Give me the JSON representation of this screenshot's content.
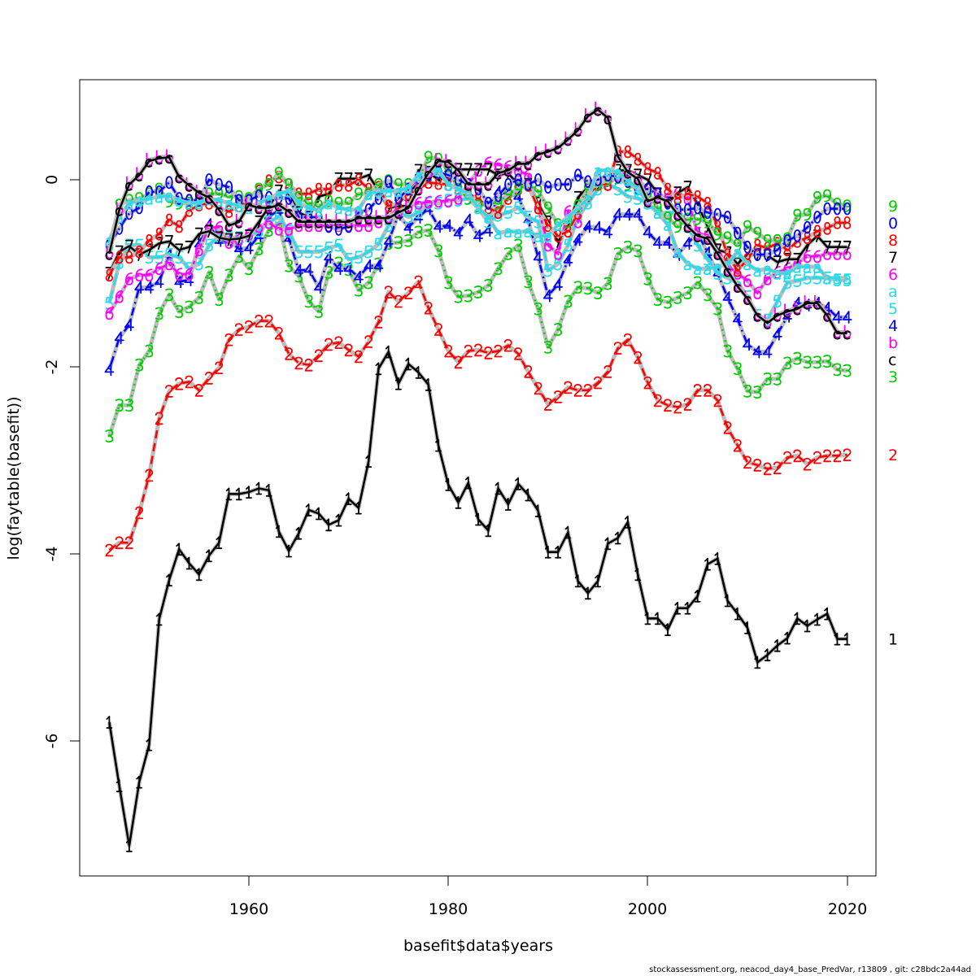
{
  "chart_data": {
    "type": "line",
    "title": "",
    "xlabel": "basefit$data$years",
    "ylabel": "log(faytable(basefit))",
    "xlim": [
      1946,
      2020
    ],
    "ylim": [
      -7.2,
      0.9
    ],
    "x_ticks": [
      "1960",
      "1980",
      "2000",
      "2020"
    ],
    "y_ticks": [
      "-6",
      "-4",
      "-2",
      "0"
    ],
    "grid": false,
    "legend": "none",
    "x_start": 1946,
    "series": [
      {
        "name": "1",
        "color": "#000000",
        "values": [
          -5.8,
          -6.48,
          -7.12,
          -6.44,
          -6.04,
          -4.7,
          -4.28,
          -3.95,
          -4.1,
          -4.22,
          -4.02,
          -3.88,
          -3.36,
          -3.36,
          -3.34,
          -3.3,
          -3.32,
          -3.76,
          -3.97,
          -3.78,
          -3.53,
          -3.57,
          -3.69,
          -3.64,
          -3.41,
          -3.51,
          -3.01,
          -2.02,
          -1.84,
          -2.18,
          -1.97,
          -2.06,
          -2.19,
          -2.84,
          -3.26,
          -3.45,
          -3.24,
          -3.63,
          -3.75,
          -3.3,
          -3.47,
          -3.25,
          -3.37,
          -3.54,
          -3.98,
          -3.98,
          -3.77,
          -4.29,
          -4.42,
          -4.29,
          -3.89,
          -3.83,
          -3.66,
          -4.22,
          -4.69,
          -4.69,
          -4.81,
          -4.58,
          -4.58,
          -4.45,
          -4.11,
          -4.05,
          -4.5,
          -4.64,
          -4.79,
          -5.16,
          -5.08,
          -4.98,
          -4.9,
          -4.69,
          -4.77,
          -4.7,
          -4.64,
          -4.91,
          -4.91
        ]
      },
      {
        "name": "2",
        "color": "#FF0000",
        "values": [
          -3.96,
          -3.88,
          -3.88,
          -3.56,
          -3.16,
          -2.55,
          -2.26,
          -2.18,
          -2.16,
          -2.25,
          -2.12,
          -2.01,
          -1.71,
          -1.6,
          -1.57,
          -1.51,
          -1.51,
          -1.64,
          -1.86,
          -1.96,
          -1.98,
          -1.88,
          -1.76,
          -1.74,
          -1.82,
          -1.89,
          -1.73,
          -1.52,
          -1.2,
          -1.3,
          -1.21,
          -1.09,
          -1.37,
          -1.6,
          -1.83,
          -1.95,
          -1.83,
          -1.82,
          -1.85,
          -1.83,
          -1.77,
          -1.86,
          -2.05,
          -2.23,
          -2.4,
          -2.32,
          -2.22,
          -2.25,
          -2.25,
          -2.17,
          -2.05,
          -1.8,
          -1.71,
          -1.9,
          -2.17,
          -2.36,
          -2.41,
          -2.43,
          -2.4,
          -2.25,
          -2.25,
          -2.36,
          -2.65,
          -2.84,
          -3.02,
          -3.05,
          -3.09,
          -3.08,
          -2.97,
          -2.95,
          -3.04,
          -2.97,
          -2.95,
          -2.95,
          -2.94
        ]
      },
      {
        "name": "3",
        "color": "#00CD00",
        "values": [
          -2.74,
          -2.41,
          -2.41,
          -1.98,
          -1.83,
          -1.43,
          -1.23,
          -1.41,
          -1.36,
          -1.26,
          -0.99,
          -1.28,
          -1.02,
          -0.82,
          -0.95,
          -0.74,
          -0.54,
          -0.46,
          -0.92,
          -1.03,
          -1.3,
          -1.41,
          -0.99,
          -0.89,
          -0.96,
          -1.18,
          -1.1,
          -0.9,
          -0.68,
          -0.67,
          -0.65,
          -0.56,
          -0.54,
          -0.76,
          -1.1,
          -1.25,
          -1.24,
          -1.2,
          -1.13,
          -0.95,
          -0.79,
          -0.7,
          -1.09,
          -1.38,
          -1.79,
          -1.6,
          -1.3,
          -1.15,
          -1.16,
          -1.21,
          -1.11,
          -0.79,
          -0.72,
          -0.76,
          -1.06,
          -1.28,
          -1.31,
          -1.26,
          -1.21,
          -1.1,
          -1.23,
          -1.38,
          -1.83,
          -2.02,
          -2.26,
          -2.27,
          -2.13,
          -2.13,
          -1.96,
          -1.91,
          -1.95,
          -1.95,
          -1.94,
          -2.03,
          -2.04
        ]
      },
      {
        "name": "4",
        "color": "#0000FF",
        "values": [
          -2.03,
          -1.69,
          -1.55,
          -1.15,
          -1.15,
          -1.09,
          -0.8,
          -1.09,
          -1.07,
          -0.69,
          -0.48,
          -0.65,
          -0.65,
          -0.74,
          -0.73,
          -0.6,
          -0.39,
          -0.33,
          -0.63,
          -0.97,
          -0.96,
          -1.15,
          -0.83,
          -0.95,
          -0.95,
          -1.04,
          -0.92,
          -0.92,
          -0.66,
          -0.37,
          -0.51,
          -0.4,
          -0.31,
          -0.5,
          -0.49,
          -0.57,
          -0.43,
          -0.6,
          -0.54,
          -0.13,
          -0.15,
          -0.18,
          -0.43,
          -0.83,
          -1.24,
          -1.12,
          -0.86,
          -0.64,
          -0.5,
          -0.51,
          -0.56,
          -0.37,
          -0.37,
          -0.37,
          -0.56,
          -0.67,
          -0.67,
          -0.8,
          -0.68,
          -0.57,
          -0.78,
          -1.0,
          -1.26,
          -1.49,
          -1.76,
          -1.84,
          -1.84,
          -1.65,
          -1.46,
          -1.32,
          -1.34,
          -1.32,
          -1.37,
          -1.47,
          -1.47
        ]
      },
      {
        "name": "5",
        "color": "#22DDEE",
        "values": [
          -1.32,
          -0.89,
          -0.7,
          -0.7,
          -0.83,
          -0.83,
          -0.8,
          -0.83,
          -0.95,
          -0.9,
          -0.7,
          -0.6,
          -0.62,
          -0.62,
          -0.6,
          -0.55,
          -0.45,
          -0.4,
          -0.55,
          -0.77,
          -0.77,
          -0.77,
          -0.73,
          -0.7,
          -0.85,
          -0.83,
          -0.77,
          -0.69,
          -0.49,
          -0.34,
          -0.4,
          -0.35,
          -0.25,
          -0.25,
          -0.22,
          -0.22,
          -0.2,
          -0.3,
          -0.45,
          -0.38,
          -0.35,
          -0.3,
          -0.4,
          -0.45,
          -0.97,
          -0.9,
          -0.7,
          -0.4,
          -0.25,
          -0.1,
          -0.05,
          -0.1,
          -0.18,
          -0.2,
          -0.25,
          -0.35,
          -0.4,
          -0.3,
          -0.5,
          -0.7,
          -0.85,
          -1.0,
          -1.05,
          -1.1,
          -1.25,
          -1.45,
          -1.5,
          -1.3,
          -1.1,
          -1.08,
          -1.05,
          -1.05,
          -1.05,
          -1.07,
          -1.07
        ]
      },
      {
        "name": "6",
        "color": "#FF00FF",
        "values": [
          -1.43,
          -1.25,
          -1.06,
          -1.02,
          -1.02,
          -0.95,
          -0.9,
          -1.01,
          -1.01,
          -0.75,
          -0.51,
          -0.51,
          -0.67,
          -0.64,
          -0.58,
          -0.5,
          -0.46,
          -0.53,
          -0.53,
          -0.49,
          -0.49,
          -0.49,
          -0.49,
          -0.49,
          -0.49,
          -0.49,
          -0.49,
          -0.45,
          -0.4,
          -0.3,
          -0.28,
          -0.25,
          -0.24,
          -0.23,
          -0.23,
          -0.2,
          -0.05,
          0.1,
          0.18,
          0.16,
          0.14,
          0.1,
          0.05,
          -0.3,
          -0.7,
          -0.79,
          -0.34,
          -0.45,
          -0.1,
          -0.05,
          -0.05,
          0.05,
          0.08,
          0.0,
          -0.1,
          -0.15,
          -0.2,
          -0.14,
          -0.2,
          -0.57,
          -0.6,
          -0.75,
          -0.92,
          -1.0,
          -1.08,
          -1.21,
          -1.06,
          -0.99,
          -0.95,
          -0.89,
          -0.82,
          -0.82,
          -0.79,
          -0.79,
          -0.79
        ]
      },
      {
        "name": "7",
        "color": "#000000",
        "values": [
          -1.0,
          -0.77,
          -0.71,
          -0.8,
          -0.75,
          -0.68,
          -0.66,
          -0.75,
          -0.72,
          -0.58,
          -0.55,
          -0.62,
          -0.64,
          -0.63,
          -0.6,
          -0.45,
          -0.29,
          -0.12,
          -0.15,
          -0.35,
          -0.4,
          -0.18,
          -0.15,
          0.01,
          0.01,
          0.01,
          0.05,
          -0.12,
          -0.3,
          -0.28,
          -0.28,
          0.1,
          0.08,
          0.0,
          0.03,
          0.11,
          0.11,
          0.11,
          0.11,
          0.05,
          0.07,
          -0.05,
          -0.05,
          -0.25,
          -0.45,
          -0.66,
          -0.5,
          -0.19,
          -0.08,
          -0.05,
          -0.01,
          0.1,
          0.1,
          0.05,
          0.0,
          -0.15,
          -0.25,
          -0.14,
          -0.08,
          -0.26,
          -0.5,
          -0.75,
          -0.78,
          -0.9,
          -0.8,
          -0.8,
          -0.81,
          -0.88,
          -0.85,
          -0.85,
          -0.7,
          -0.6,
          -0.72,
          -0.72,
          -0.72
        ]
      },
      {
        "name": "8",
        "color": "#FF0000",
        "values": [
          -1.02,
          -0.83,
          -0.83,
          -0.77,
          -0.65,
          -0.58,
          -0.43,
          -0.5,
          -0.33,
          -0.27,
          -0.25,
          -0.3,
          -0.34,
          -0.28,
          -0.23,
          -0.12,
          -0.01,
          0.03,
          -0.05,
          -0.15,
          -0.15,
          -0.1,
          -0.1,
          -0.06,
          -0.06,
          0.0,
          -0.1,
          -0.08,
          -0.28,
          -0.25,
          -0.15,
          -0.1,
          -0.03,
          -0.04,
          -0.05,
          -0.1,
          -0.15,
          -0.2,
          -0.3,
          -0.35,
          -0.2,
          -0.1,
          -0.06,
          -0.3,
          -0.49,
          -0.6,
          -0.55,
          -0.36,
          -0.17,
          -0.05,
          -0.05,
          0.3,
          0.3,
          0.22,
          0.12,
          0.07,
          -0.1,
          -0.2,
          -0.15,
          -0.18,
          -0.25,
          -0.5,
          -0.8,
          -0.97,
          -0.85,
          -0.7,
          -0.73,
          -0.68,
          -0.75,
          -0.66,
          -0.62,
          -0.55,
          -0.52,
          -0.46,
          -0.46
        ]
      },
      {
        "name": "9",
        "color": "#00CD00",
        "values": [
          -0.72,
          -0.27,
          -0.22,
          -0.2,
          -0.15,
          -0.1,
          -0.23,
          -0.25,
          -0.25,
          -0.22,
          -0.15,
          -0.15,
          -0.18,
          -0.18,
          -0.2,
          -0.1,
          -0.05,
          0.07,
          -0.05,
          -0.19,
          -0.25,
          -0.28,
          -0.23,
          -0.25,
          -0.25,
          -0.15,
          -0.15,
          -0.05,
          -0.01,
          -0.05,
          -0.05,
          0.0,
          0.24,
          0.22,
          0.1,
          -0.1,
          -0.2,
          -0.28,
          -0.25,
          -0.25,
          -0.15,
          -0.1,
          -0.05,
          -0.12,
          -0.3,
          -0.48,
          -0.45,
          -0.28,
          -0.1,
          -0.05,
          0.0,
          0.02,
          -0.05,
          -0.1,
          -0.15,
          -0.3,
          -0.41,
          -0.5,
          -0.42,
          -0.42,
          -0.45,
          -0.58,
          -0.62,
          -0.7,
          -0.5,
          -0.57,
          -0.65,
          -0.65,
          -0.63,
          -0.38,
          -0.37,
          -0.19,
          -0.17,
          -0.26,
          -0.28
        ]
      },
      {
        "name": "0",
        "color": "#0000FF",
        "values": [
          -0.7,
          -0.52,
          -0.36,
          -0.3,
          -0.13,
          -0.13,
          -0.03,
          -0.2,
          -0.22,
          -0.22,
          0.0,
          -0.05,
          -0.08,
          -0.22,
          -0.22,
          -0.17,
          -0.19,
          -0.19,
          -0.2,
          -0.4,
          -0.4,
          -0.4,
          -0.5,
          -0.53,
          -0.5,
          -0.35,
          -0.32,
          -0.2,
          -0.02,
          -0.2,
          -0.1,
          0.02,
          0.05,
          0.08,
          0.05,
          0.0,
          -0.05,
          -0.1,
          -0.25,
          -0.17,
          -0.05,
          0.0,
          -0.05,
          0.0,
          -0.08,
          -0.05,
          -0.05,
          0.05,
          -0.02,
          0.0,
          0.05,
          0.03,
          -0.02,
          -0.1,
          -0.1,
          -0.15,
          -0.25,
          -0.32,
          -0.32,
          -0.3,
          -0.35,
          -0.37,
          -0.4,
          -0.57,
          -0.72,
          -0.8,
          -0.8,
          -0.75,
          -0.65,
          -0.6,
          -0.51,
          -0.4,
          -0.31,
          -0.31,
          -0.31
        ]
      },
      {
        "name": "a",
        "color": "#22DDEE",
        "values": [
          -0.65,
          -0.4,
          -0.25,
          -0.22,
          -0.2,
          -0.18,
          -0.17,
          -0.22,
          -0.25,
          -0.25,
          -0.2,
          -0.22,
          -0.25,
          -0.28,
          -0.3,
          -0.25,
          -0.2,
          -0.15,
          -0.12,
          -0.25,
          -0.3,
          -0.33,
          -0.25,
          -0.3,
          -0.32,
          -0.32,
          -0.15,
          -0.12,
          -0.12,
          -0.12,
          -0.08,
          0.05,
          0.1,
          0.1,
          -0.05,
          -0.1,
          -0.15,
          -0.3,
          -0.4,
          -0.57,
          -0.55,
          -0.56,
          -0.55,
          -0.6,
          -0.6,
          -0.48,
          -0.4,
          -0.3,
          -0.2,
          0.1,
          0.1,
          0.08,
          0.0,
          -0.1,
          -0.25,
          -0.35,
          -0.48,
          -0.77,
          -0.9,
          -0.95,
          -0.95,
          -0.93,
          -0.9,
          -0.77,
          -0.9,
          -0.97,
          -0.95,
          -1.0,
          -1.0,
          -0.93,
          -0.93,
          -0.93,
          -1.05,
          -1.05,
          -1.05
        ]
      },
      {
        "name": "b",
        "color": "#FF00FF",
        "values": [
          -0.78,
          -0.31,
          -0.04,
          0.06,
          0.21,
          0.24,
          0.25,
          0.04,
          -0.05,
          -0.13,
          -0.18,
          -0.31,
          -0.48,
          -0.44,
          -0.26,
          -0.29,
          -0.29,
          -0.26,
          -0.33,
          -0.44,
          -0.44,
          -0.44,
          -0.44,
          -0.44,
          -0.44,
          -0.4,
          -0.4,
          -0.4,
          -0.4,
          -0.34,
          -0.29,
          -0.09,
          0.08,
          0.21,
          0.2,
          0.11,
          -0.04,
          -0.04,
          -0.04,
          0.08,
          0.11,
          0.18,
          0.18,
          0.28,
          0.31,
          0.35,
          0.44,
          0.54,
          0.69,
          0.76,
          0.67,
          0.26,
          0.09,
          0.02,
          -0.22,
          -0.18,
          -0.22,
          -0.36,
          -0.49,
          -0.59,
          -0.62,
          -0.78,
          -0.96,
          -1.13,
          -1.26,
          -1.44,
          -1.52,
          -1.44,
          -1.4,
          -1.37,
          -1.31,
          -1.31,
          -1.44,
          -1.63,
          -1.63
        ]
      },
      {
        "name": "c",
        "color": "#000000",
        "values": [
          -0.79,
          -0.32,
          -0.05,
          0.05,
          0.2,
          0.23,
          0.24,
          0.03,
          -0.06,
          -0.14,
          -0.19,
          -0.32,
          -0.49,
          -0.45,
          -0.27,
          -0.3,
          -0.3,
          -0.27,
          -0.34,
          -0.45,
          -0.45,
          -0.45,
          -0.45,
          -0.45,
          -0.45,
          -0.41,
          -0.41,
          -0.41,
          -0.41,
          -0.35,
          -0.3,
          -0.1,
          0.07,
          0.2,
          0.19,
          0.1,
          -0.05,
          -0.05,
          -0.05,
          0.07,
          0.1,
          0.17,
          0.17,
          0.27,
          0.3,
          0.34,
          0.43,
          0.53,
          0.68,
          0.75,
          0.66,
          0.25,
          0.08,
          0.01,
          -0.23,
          -0.19,
          -0.23,
          -0.37,
          -0.5,
          -0.6,
          -0.63,
          -0.79,
          -0.97,
          -1.14,
          -1.27,
          -1.45,
          -1.53,
          -1.45,
          -1.41,
          -1.38,
          -1.32,
          -1.32,
          -1.45,
          -1.64,
          -1.64
        ]
      }
    ]
  },
  "footer": "stockassessment.org, neacod_day4_base_PredVar, r13809 , git: c28bdc2a44ad"
}
